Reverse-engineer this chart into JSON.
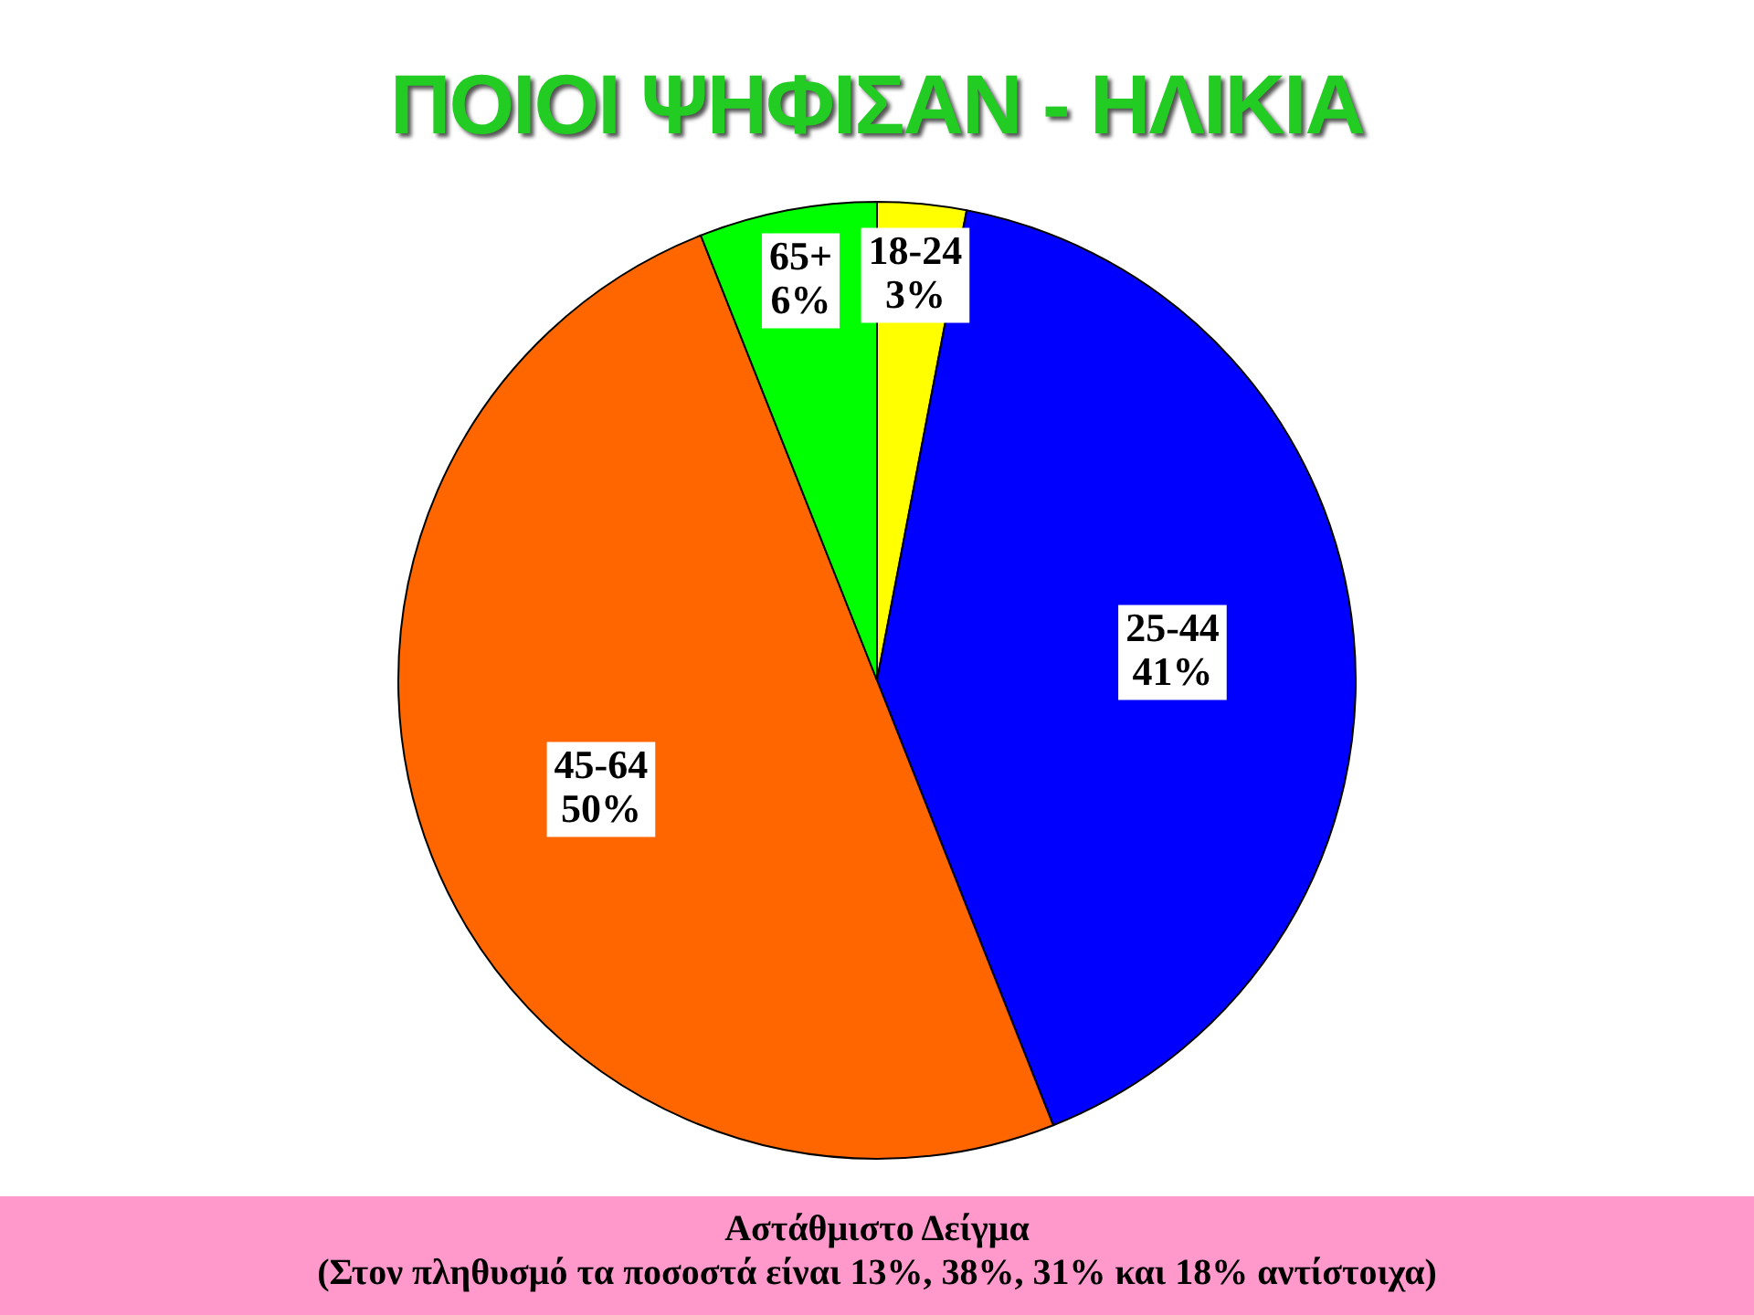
{
  "chart_data": {
    "type": "pie",
    "title": "ΠΟΙΟΙ ΨΗΦΙΣΑΝ - ΗΛΙΚΙΑ",
    "categories": [
      "18-24",
      "25-44",
      "45-64",
      "65+"
    ],
    "values": [
      3,
      41,
      50,
      6
    ],
    "value_labels": [
      "3%",
      "41%",
      "50%",
      "6%"
    ],
    "colors": [
      "#ffff00",
      "#0000ff",
      "#ff6600",
      "#00ff00"
    ],
    "annotations": [
      "Αστάθμιστο Δείγμα",
      "(Στον πληθυσμό τα ποσοστά είναι 13%, 38%, 31% και 18% αντίστοιχα)"
    ]
  }
}
